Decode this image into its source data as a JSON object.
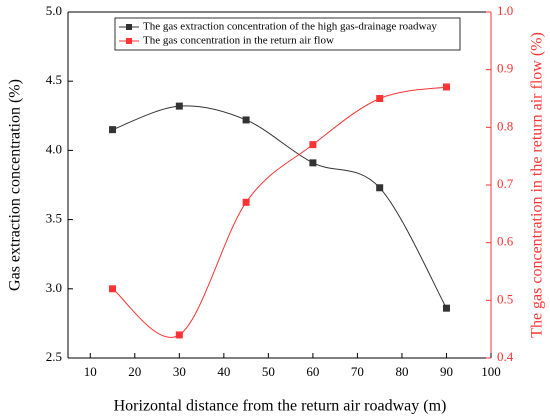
{
  "chart_data": {
    "type": "line",
    "smooth": true,
    "x_label": "Horizontal distance from the return air roadway (m)",
    "y_label": "Gas extraction concentration (%)",
    "y2_label": "The gas concentration in the return air flow (%)",
    "x": [
      15,
      30,
      45,
      60,
      75,
      90
    ],
    "series": [
      {
        "name": "The gas extraction concentration of the high gas-drainage roadway",
        "color": "#333333",
        "values": [
          4.15,
          4.32,
          4.22,
          3.91,
          3.73,
          2.86
        ]
      },
      {
        "name": "The gas concentration in the return air flow",
        "color": "#ff3333",
        "values": [
          0.52,
          0.44,
          0.67,
          0.77,
          0.85,
          0.87
        ],
        "axis": "y2"
      }
    ],
    "xlim": [
      5,
      100
    ],
    "xticks": [
      10,
      20,
      30,
      40,
      50,
      60,
      70,
      80,
      90,
      100
    ],
    "ylim": [
      2.5,
      5
    ],
    "yticks": [
      2.5,
      {
        "value": 3,
        "label": "3.0"
      },
      3.5,
      {
        "value": 4,
        "label": "4.0"
      },
      4.5,
      {
        "value": 5,
        "label": "5.0"
      }
    ],
    "y2lim": [
      0.4,
      1
    ],
    "y2ticks": [
      0.4,
      0.5,
      0.6,
      0.7,
      0.8,
      0.9,
      {
        "value": 1,
        "label": "1.0"
      }
    ],
    "y2_color": "#ff3333",
    "legend": "top"
  }
}
